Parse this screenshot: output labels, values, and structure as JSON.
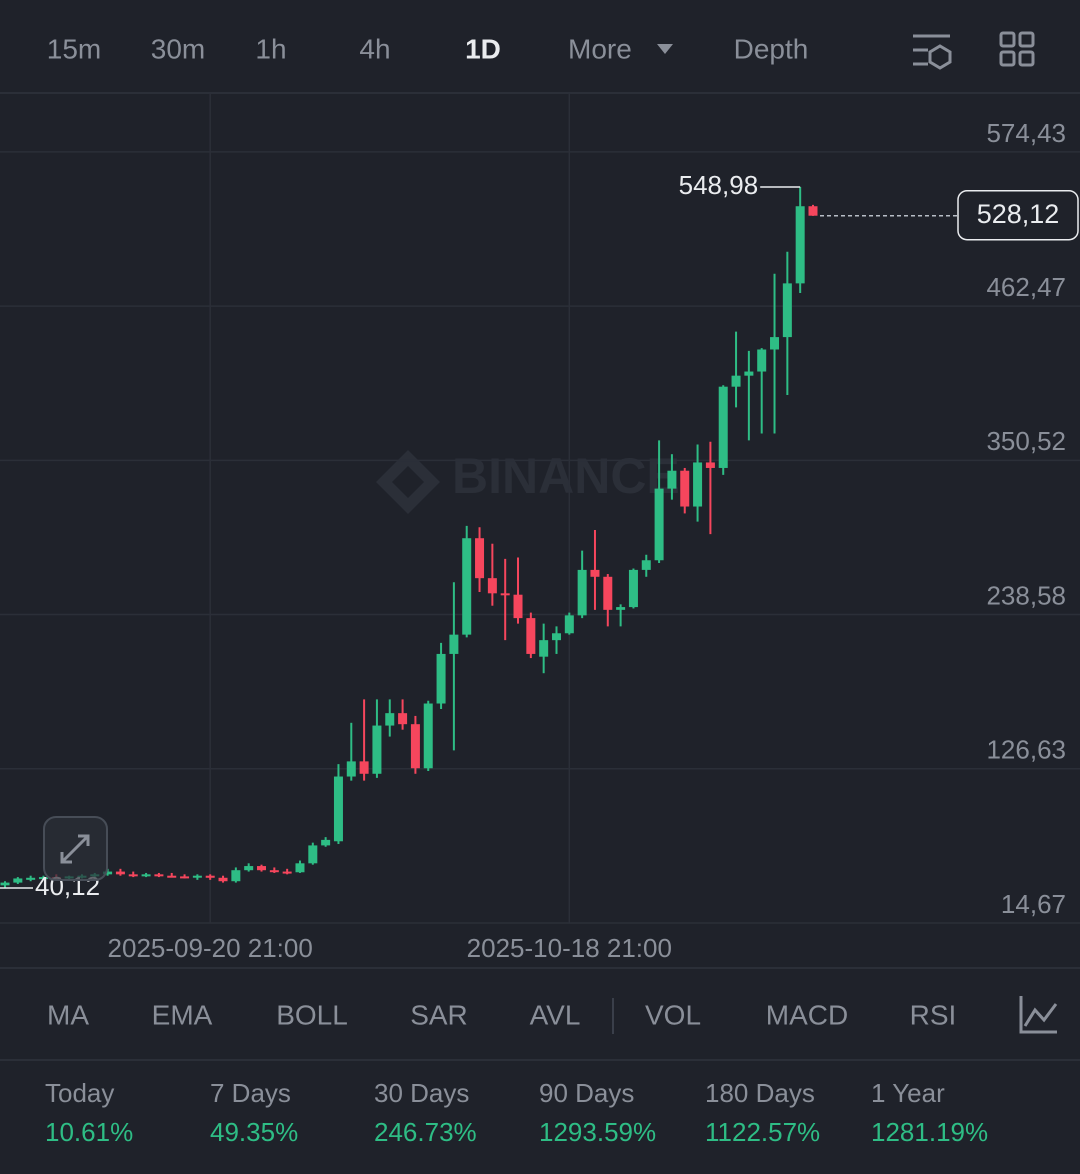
{
  "toolbar": {
    "timeframes": [
      "15m",
      "30m",
      "1h",
      "4h",
      "1D",
      "More",
      "Depth"
    ],
    "active": 4
  },
  "watermark": "BINANCE",
  "chart_data": {
    "type": "candlestick",
    "categories": [
      null,
      null,
      null,
      null,
      null,
      null,
      null,
      null,
      null,
      null,
      null,
      null,
      null,
      null,
      null,
      null,
      "2025-09-20 21:00",
      null,
      null,
      null,
      null,
      null,
      null,
      null,
      null,
      null,
      null,
      null,
      null,
      null,
      null,
      null,
      null,
      null,
      null,
      null,
      null,
      null,
      null,
      null,
      null,
      null,
      null,
      null,
      "2025-10-18 21:00",
      null,
      null,
      null,
      null,
      null,
      null,
      null,
      null,
      null,
      null,
      null,
      null,
      null,
      null,
      null,
      null,
      null,
      null,
      null
    ],
    "open": [
      42,
      44,
      46,
      47,
      48,
      47.5,
      48.5,
      49,
      50,
      52,
      50,
      49.5,
      50,
      49,
      48.5,
      48,
      49,
      47.5,
      45,
      53,
      56,
      53,
      52,
      51.5,
      58,
      71,
      74,
      121,
      132,
      123,
      158,
      167,
      159,
      127,
      174,
      210,
      224,
      294,
      265,
      254,
      253,
      236,
      208,
      220,
      225,
      238,
      271,
      266,
      242,
      244,
      271,
      278,
      330,
      343,
      317,
      349,
      345,
      404,
      412,
      415,
      431,
      440,
      479,
      535
    ],
    "high": [
      45,
      48,
      49,
      49,
      50,
      49,
      50,
      51,
      54,
      54,
      52,
      51,
      51,
      51,
      50,
      50,
      50,
      49,
      55,
      58,
      57,
      55,
      54,
      60,
      73,
      77,
      130,
      160,
      177,
      177,
      177,
      177,
      165,
      176,
      218,
      262,
      303,
      302,
      290,
      279,
      280,
      240,
      232,
      230,
      240,
      285,
      300,
      268,
      246,
      272,
      282,
      365,
      355,
      345,
      362,
      364,
      405,
      444,
      430,
      432,
      486,
      502,
      548.98,
      536
    ],
    "low": [
      40.12,
      43,
      45,
      46,
      46,
      46,
      47,
      47,
      49,
      49,
      48,
      48,
      48,
      48,
      47,
      46,
      46,
      44,
      44,
      52,
      52,
      51,
      50,
      51,
      57,
      70,
      72,
      118,
      118,
      120,
      150,
      155,
      123,
      125,
      170,
      140,
      222,
      255,
      245,
      220,
      232,
      207,
      196,
      210,
      224,
      236,
      242,
      230,
      230,
      243,
      266,
      276,
      322,
      312,
      306,
      297,
      340,
      389,
      365,
      370,
      370,
      398,
      472,
      528
    ],
    "close": [
      44,
      47,
      47.5,
      48,
      47.5,
      48.5,
      49,
      50,
      52,
      50,
      49.5,
      50,
      49,
      48.5,
      48,
      49,
      47.5,
      45,
      53,
      56,
      53,
      52,
      51.5,
      58,
      71,
      75,
      121,
      132,
      123,
      158,
      167,
      159,
      127,
      174,
      210,
      224,
      294,
      265,
      254,
      253,
      236,
      210,
      220,
      225,
      238,
      271,
      266,
      242,
      244,
      271,
      278,
      330,
      343,
      317,
      349,
      345,
      404,
      412,
      415,
      431,
      440,
      479,
      535,
      528.12
    ],
    "ylim": [
      14.67,
      617.2
    ],
    "yticks": [
      {
        "value": 14.67,
        "label": "14,67"
      },
      {
        "value": 126.63,
        "label": "126,63"
      },
      {
        "value": 238.58,
        "label": "238,58"
      },
      {
        "value": 350.52,
        "label": "350,52"
      },
      {
        "value": 462.47,
        "label": "462,47"
      },
      {
        "value": 574.43,
        "label": "574,43"
      }
    ],
    "up_color": "#2ebd85",
    "down_color": "#f6465d",
    "grid": true,
    "high_label": "548,98",
    "low_label": "40,12",
    "last_price_label": "528,12"
  },
  "indicators": [
    "MA",
    "EMA",
    "BOLL",
    "SAR",
    "AVL",
    "VOL",
    "MACD",
    "RSI"
  ],
  "stats": [
    {
      "label": "Today",
      "value": "10.61%"
    },
    {
      "label": "7 Days",
      "value": "49.35%"
    },
    {
      "label": "30 Days",
      "value": "246.73%"
    },
    {
      "label": "90 Days",
      "value": "1293.59%"
    },
    {
      "label": "180 Days",
      "value": "1122.57%"
    },
    {
      "label": "1 Year",
      "value": "1281.19%"
    }
  ]
}
